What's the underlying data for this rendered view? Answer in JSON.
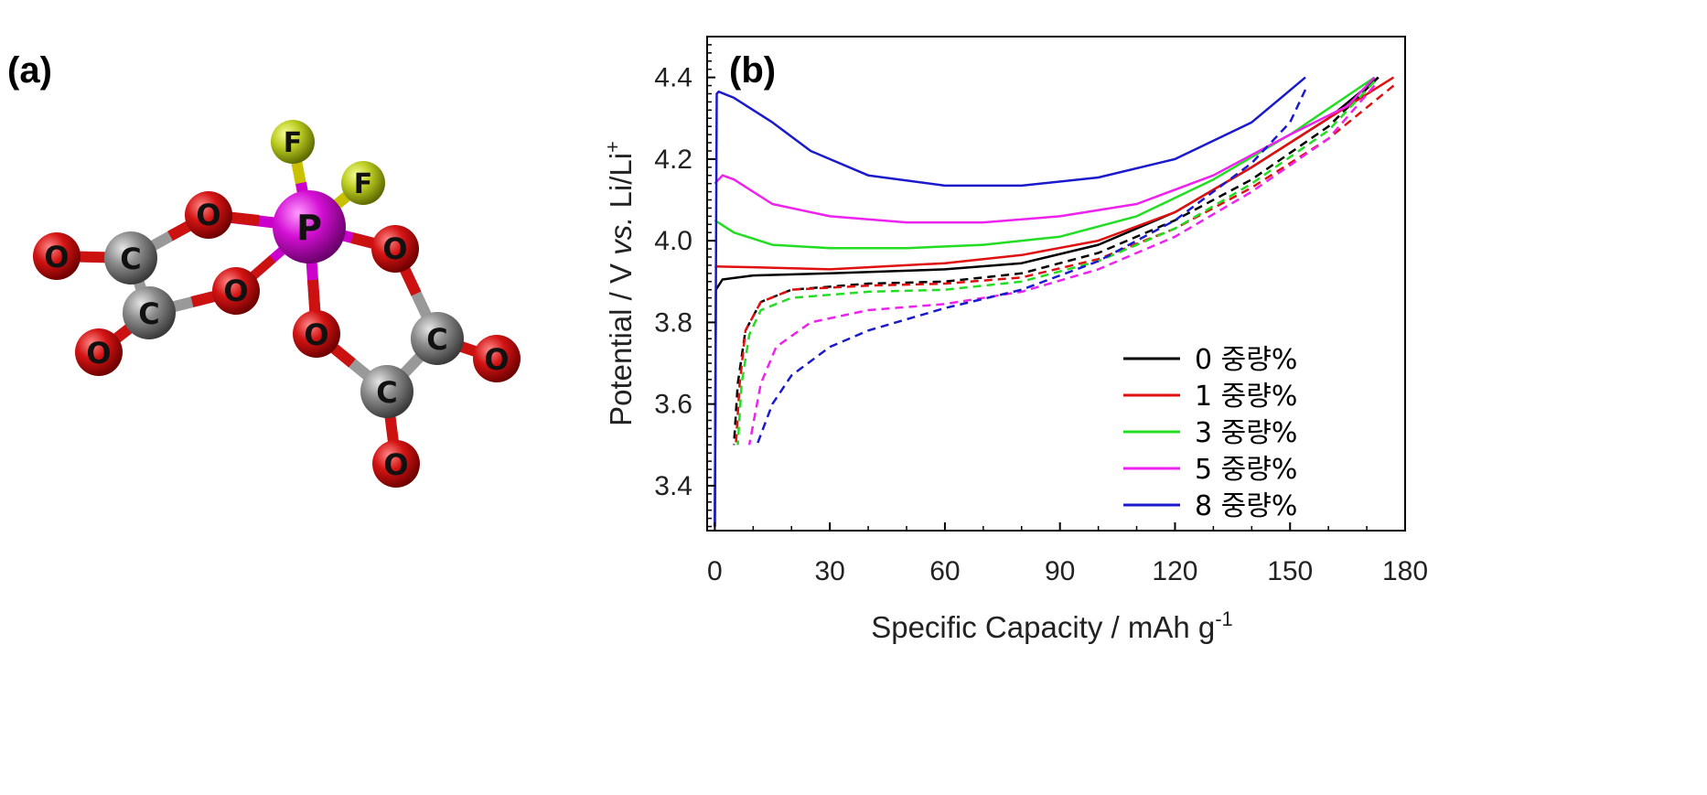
{
  "panel_a": {
    "label": "(a)",
    "atoms": [
      {
        "id": "P",
        "label": "P",
        "color": "#cc00cc"
      },
      {
        "id": "F1",
        "label": "F",
        "color": "#b8c820"
      },
      {
        "id": "F2",
        "label": "F",
        "color": "#b8c820"
      },
      {
        "id": "O1",
        "label": "O",
        "color": "#cc1111"
      },
      {
        "id": "O2",
        "label": "O",
        "color": "#cc1111"
      },
      {
        "id": "O3",
        "label": "O",
        "color": "#cc1111"
      },
      {
        "id": "O4",
        "label": "O",
        "color": "#cc1111"
      },
      {
        "id": "O5",
        "label": "O",
        "color": "#cc1111"
      },
      {
        "id": "O6",
        "label": "O",
        "color": "#cc1111"
      },
      {
        "id": "O7",
        "label": "O",
        "color": "#cc1111"
      },
      {
        "id": "O8",
        "label": "O",
        "color": "#cc1111"
      },
      {
        "id": "C1",
        "label": "C",
        "color": "#888888"
      },
      {
        "id": "C2",
        "label": "C",
        "color": "#888888"
      },
      {
        "id": "C3",
        "label": "C",
        "color": "#888888"
      },
      {
        "id": "C4",
        "label": "C",
        "color": "#888888"
      }
    ]
  },
  "chart_data": {
    "panel_label": "(b)",
    "type": "line",
    "xlabel": "Specific Capacity / mAh g",
    "xlabel_sup": "-1",
    "ylabel_pre": "Potential / V ",
    "ylabel_vs": "vs.",
    "ylabel_post": " Li/Li",
    "ylabel_sup": "+",
    "xlim": [
      -2,
      180
    ],
    "ylim": [
      3.29,
      4.5
    ],
    "xticks": [
      0,
      30,
      60,
      90,
      120,
      150,
      180
    ],
    "yticks": [
      3.4,
      3.6,
      3.8,
      4.0,
      4.2,
      4.4
    ],
    "xtick_labels": [
      "0",
      "30",
      "60",
      "90",
      "120",
      "150",
      "180"
    ],
    "ytick_labels": [
      "3.4",
      "3.6",
      "3.8",
      "4.0",
      "4.2",
      "4.4"
    ],
    "legend_position": "lower-right",
    "series": [
      {
        "name": "0 중량%",
        "color": "#000000",
        "charge": [
          [
            0,
            3.3
          ],
          [
            0.3,
            3.88
          ],
          [
            2,
            3.905
          ],
          [
            10,
            3.915
          ],
          [
            30,
            3.92
          ],
          [
            60,
            3.93
          ],
          [
            80,
            3.945
          ],
          [
            100,
            3.99
          ],
          [
            120,
            4.07
          ],
          [
            140,
            4.18
          ],
          [
            160,
            4.3
          ],
          [
            173,
            4.4
          ]
        ],
        "discharge": [
          [
            173,
            4.4
          ],
          [
            160,
            4.28
          ],
          [
            140,
            4.15
          ],
          [
            120,
            4.05
          ],
          [
            100,
            3.97
          ],
          [
            80,
            3.92
          ],
          [
            60,
            3.9
          ],
          [
            40,
            3.895
          ],
          [
            20,
            3.88
          ],
          [
            12,
            3.85
          ],
          [
            8,
            3.78
          ],
          [
            6,
            3.65
          ],
          [
            5,
            3.5
          ]
        ]
      },
      {
        "name": "1 중량%",
        "color": "#e01010",
        "charge": [
          [
            0,
            3.937
          ],
          [
            10,
            3.935
          ],
          [
            30,
            3.93
          ],
          [
            60,
            3.945
          ],
          [
            80,
            3.965
          ],
          [
            100,
            4.0
          ],
          [
            120,
            4.07
          ],
          [
            140,
            4.18
          ],
          [
            160,
            4.3
          ],
          [
            177,
            4.4
          ]
        ],
        "discharge": [
          [
            177,
            4.38
          ],
          [
            160,
            4.25
          ],
          [
            140,
            4.13
          ],
          [
            120,
            4.03
          ],
          [
            100,
            3.955
          ],
          [
            80,
            3.91
          ],
          [
            60,
            3.895
          ],
          [
            40,
            3.89
          ],
          [
            20,
            3.88
          ],
          [
            12,
            3.85
          ],
          [
            8,
            3.78
          ],
          [
            6.5,
            3.65
          ],
          [
            5.5,
            3.5
          ]
        ]
      },
      {
        "name": "3 중량%",
        "color": "#22dd22",
        "charge": [
          [
            0,
            4.05
          ],
          [
            5,
            4.02
          ],
          [
            15,
            3.99
          ],
          [
            30,
            3.982
          ],
          [
            50,
            3.982
          ],
          [
            70,
            3.99
          ],
          [
            90,
            4.01
          ],
          [
            110,
            4.06
          ],
          [
            130,
            4.15
          ],
          [
            150,
            4.26
          ],
          [
            172,
            4.4
          ]
        ],
        "discharge": [
          [
            172,
            4.39
          ],
          [
            160,
            4.27
          ],
          [
            140,
            4.14
          ],
          [
            120,
            4.03
          ],
          [
            100,
            3.95
          ],
          [
            80,
            3.9
          ],
          [
            60,
            3.88
          ],
          [
            40,
            3.875
          ],
          [
            20,
            3.86
          ],
          [
            12,
            3.83
          ],
          [
            9,
            3.77
          ],
          [
            7,
            3.65
          ],
          [
            6,
            3.5
          ]
        ]
      },
      {
        "name": "5 중량%",
        "color": "#ee22ee",
        "charge": [
          [
            0,
            4.14
          ],
          [
            2,
            4.16
          ],
          [
            5,
            4.15
          ],
          [
            15,
            4.09
          ],
          [
            30,
            4.06
          ],
          [
            50,
            4.045
          ],
          [
            70,
            4.045
          ],
          [
            90,
            4.06
          ],
          [
            110,
            4.09
          ],
          [
            130,
            4.16
          ],
          [
            150,
            4.26
          ],
          [
            165,
            4.33
          ],
          [
            172,
            4.4
          ]
        ],
        "discharge": [
          [
            172,
            4.38
          ],
          [
            160,
            4.25
          ],
          [
            140,
            4.12
          ],
          [
            120,
            4.01
          ],
          [
            100,
            3.93
          ],
          [
            80,
            3.875
          ],
          [
            60,
            3.845
          ],
          [
            40,
            3.83
          ],
          [
            25,
            3.8
          ],
          [
            16,
            3.74
          ],
          [
            12,
            3.65
          ],
          [
            9,
            3.5
          ]
        ]
      },
      {
        "name": "8 중량%",
        "color": "#1a1acc",
        "charge": [
          [
            0,
            3.3
          ],
          [
            0.5,
            4.36
          ],
          [
            1,
            4.365
          ],
          [
            5,
            4.35
          ],
          [
            15,
            4.29
          ],
          [
            25,
            4.22
          ],
          [
            40,
            4.16
          ],
          [
            60,
            4.135
          ],
          [
            80,
            4.135
          ],
          [
            100,
            4.155
          ],
          [
            120,
            4.2
          ],
          [
            140,
            4.29
          ],
          [
            154,
            4.4
          ]
        ],
        "discharge": [
          [
            154,
            4.37
          ],
          [
            150,
            4.29
          ],
          [
            140,
            4.19
          ],
          [
            120,
            4.05
          ],
          [
            100,
            3.95
          ],
          [
            80,
            3.88
          ],
          [
            60,
            3.835
          ],
          [
            40,
            3.78
          ],
          [
            30,
            3.74
          ],
          [
            20,
            3.67
          ],
          [
            15,
            3.6
          ],
          [
            11,
            3.5
          ]
        ]
      }
    ]
  }
}
